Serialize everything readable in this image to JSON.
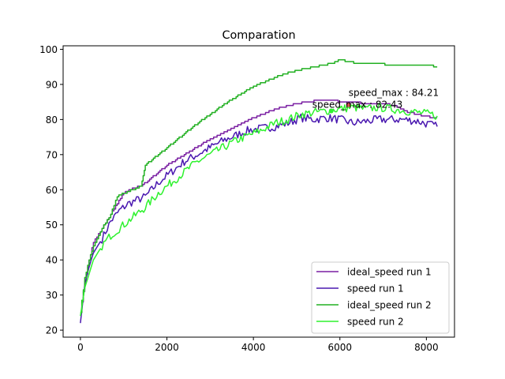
{
  "chart_data": {
    "type": "line",
    "title": "Comparation",
    "xlabel": "",
    "ylabel": "",
    "xlim": [
      -400,
      8650
    ],
    "ylim": [
      18,
      101
    ],
    "x_ticks": [
      0,
      2000,
      4000,
      6000,
      8000
    ],
    "y_ticks": [
      20,
      30,
      40,
      50,
      60,
      70,
      80,
      90,
      100
    ],
    "x_tick_labels": [
      "0",
      "2000",
      "4000",
      "6000",
      "8000"
    ],
    "y_tick_labels": [
      "20",
      "30",
      "40",
      "50",
      "60",
      "70",
      "80",
      "90",
      "100"
    ],
    "grid": false,
    "legend_position": "lower-right",
    "series": [
      {
        "name": "ideal_speed run 1",
        "color": "#7a1fa2",
        "x": [
          0,
          100,
          200,
          300,
          500,
          700,
          850,
          1000,
          1200,
          1400,
          1600,
          2000,
          2400,
          2800,
          3200,
          3600,
          4000,
          4400,
          4800,
          5200,
          5600,
          6000,
          6400,
          6800,
          7200,
          7600,
          8000,
          8250
        ],
        "y": [
          25,
          34,
          40,
          45,
          49,
          53,
          56,
          59,
          60.5,
          61,
          63,
          67,
          70,
          73,
          75.5,
          78,
          80.5,
          82.5,
          84,
          85,
          85.5,
          85.2,
          84.8,
          84.5,
          84.2,
          82,
          80.8,
          80.5
        ]
      },
      {
        "name": "speed run 1",
        "color": "#4a18b0",
        "x": [
          0,
          100,
          200,
          300,
          500,
          700,
          900,
          1100,
          1300,
          1500,
          1800,
          2100,
          2400,
          2700,
          3000,
          3300,
          3600,
          3900,
          4200,
          4500,
          4800,
          5100,
          5400,
          5700,
          6000,
          6300,
          6600,
          6900,
          7200,
          7500,
          7800,
          8100,
          8250
        ],
        "y": [
          22,
          33,
          38,
          42,
          46,
          51,
          54,
          56,
          57,
          58,
          62,
          65,
          68,
          70,
          72,
          74,
          75.5,
          77,
          77.5,
          78,
          79,
          80.5,
          80,
          80.5,
          80,
          79,
          79.5,
          80,
          80,
          80,
          79.5,
          78.5,
          78
        ]
      },
      {
        "name": "ideal_speed run 2",
        "color": "#22b022",
        "x": [
          0,
          100,
          200,
          300,
          500,
          700,
          850,
          1000,
          1200,
          1400,
          1450,
          1500,
          1800,
          2200,
          2600,
          3000,
          3400,
          3800,
          4200,
          4600,
          5000,
          5400,
          5800,
          6000,
          6400,
          6800,
          7200,
          7600,
          8000,
          8250
        ],
        "y": [
          25,
          35,
          40,
          44,
          49,
          53,
          58,
          59,
          60,
          61,
          64,
          67,
          70,
          74,
          78,
          81.5,
          85,
          88,
          90.5,
          92.5,
          94,
          95,
          96,
          97,
          96,
          96,
          95.5,
          95.5,
          95.5,
          95
        ]
      },
      {
        "name": "speed run 2",
        "color": "#2ef22e",
        "x": [
          0,
          100,
          200,
          300,
          500,
          700,
          900,
          1200,
          1500,
          1800,
          2100,
          2400,
          2700,
          3000,
          3300,
          3600,
          3900,
          4200,
          4500,
          4800,
          5100,
          5400,
          5700,
          6000,
          6300,
          6600,
          6900,
          7200,
          7500,
          7800,
          8100,
          8250
        ],
        "y": [
          24,
          32,
          36,
          40,
          44,
          47,
          49,
          52,
          55,
          59,
          62,
          65,
          68,
          70,
          72,
          74,
          75.5,
          77,
          79,
          80,
          81.5,
          82,
          82.5,
          83,
          83.5,
          83,
          83.5,
          83,
          82.5,
          82,
          81.5,
          81
        ]
      }
    ],
    "annotations": [
      {
        "text": "speed_max : 84.21",
        "x": 6200,
        "y": 84.21,
        "marker_color": "#d9534f"
      },
      {
        "text": "speed_max : 82.43",
        "x": 5800,
        "y": 82.43,
        "marker_color": "#2ef22e"
      }
    ]
  }
}
